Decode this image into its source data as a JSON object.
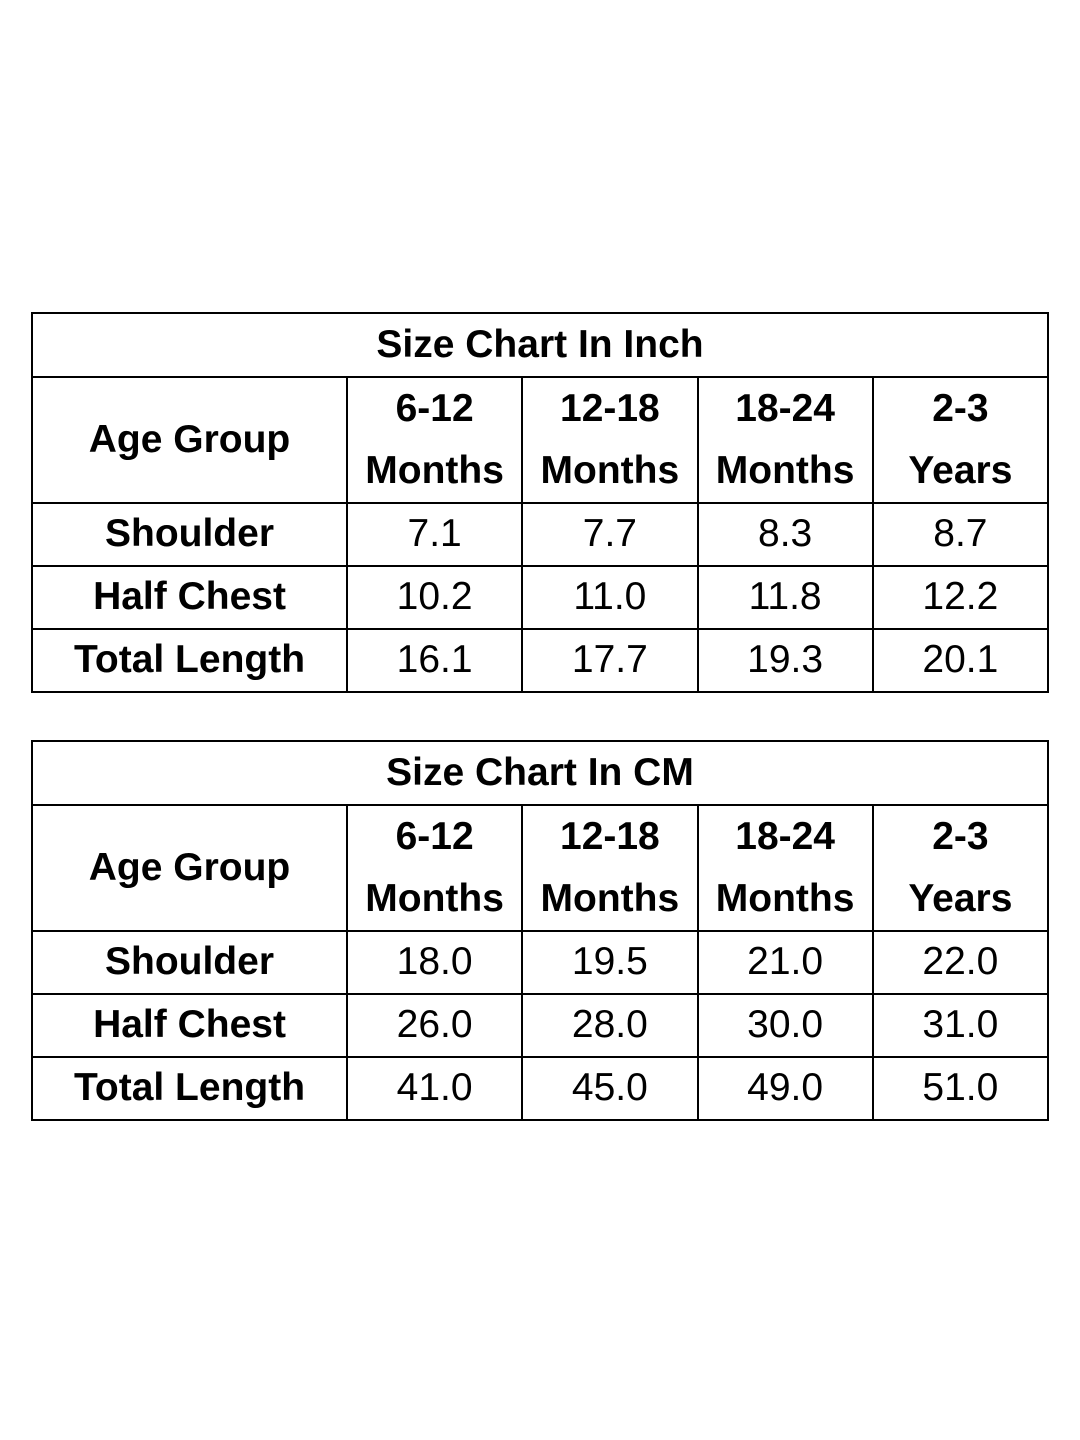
{
  "tables": [
    {
      "title": "Size Chart In Inch",
      "header_label": "Age Group",
      "columns": [
        {
          "line1": "6-12",
          "line2": "Months"
        },
        {
          "line1": "12-18",
          "line2": "Months"
        },
        {
          "line1": "18-24",
          "line2": "Months"
        },
        {
          "line1": "2-3",
          "line2": "Years"
        }
      ],
      "rows": [
        {
          "label": "Shoulder",
          "values": [
            "7.1",
            "7.7",
            "8.3",
            "8.7"
          ]
        },
        {
          "label": "Half Chest",
          "values": [
            "10.2",
            "11.0",
            "11.8",
            "12.2"
          ]
        },
        {
          "label": "Total Length",
          "values": [
            "16.1",
            "17.7",
            "19.3",
            "20.1"
          ]
        }
      ]
    },
    {
      "title": "Size Chart In CM",
      "header_label": "Age Group",
      "columns": [
        {
          "line1": "6-12",
          "line2": "Months"
        },
        {
          "line1": "12-18",
          "line2": "Months"
        },
        {
          "line1": "18-24",
          "line2": "Months"
        },
        {
          "line1": "2-3",
          "line2": "Years"
        }
      ],
      "rows": [
        {
          "label": "Shoulder",
          "values": [
            "18.0",
            "19.5",
            "21.0",
            "22.0"
          ]
        },
        {
          "label": "Half Chest",
          "values": [
            "26.0",
            "28.0",
            "30.0",
            "31.0"
          ]
        },
        {
          "label": "Total Length",
          "values": [
            "41.0",
            "45.0",
            "49.0",
            "51.0"
          ]
        }
      ]
    }
  ]
}
